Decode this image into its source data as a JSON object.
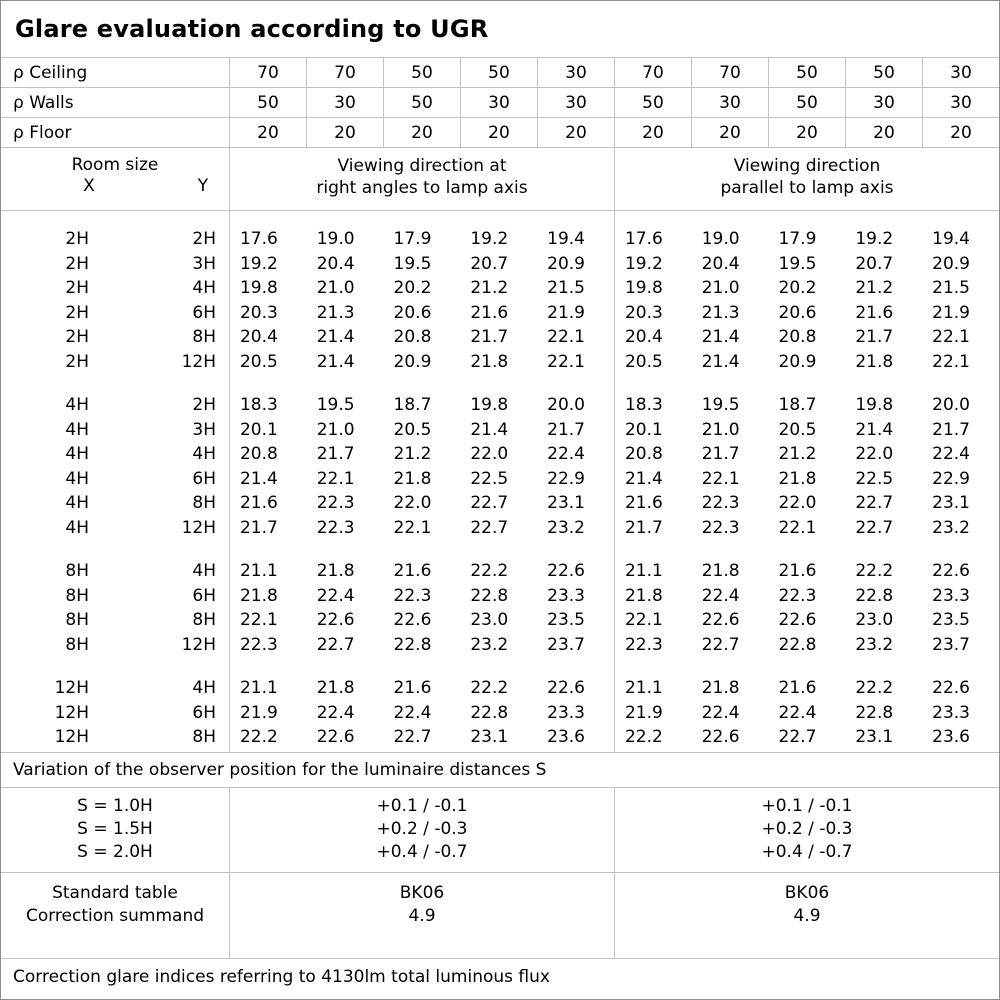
{
  "title": "Glare evaluation according to UGR",
  "colors": {
    "background": "#ffffff",
    "grid_line": "#c2c2c2",
    "outer_border": "#8f8f8f",
    "text": "#000000"
  },
  "reflectances": {
    "rows": [
      {
        "label": "ρ Ceiling",
        "values": [
          "70",
          "70",
          "50",
          "50",
          "30",
          "70",
          "70",
          "50",
          "50",
          "30"
        ]
      },
      {
        "label": "ρ Walls",
        "values": [
          "50",
          "30",
          "50",
          "30",
          "30",
          "50",
          "30",
          "50",
          "30",
          "30"
        ]
      },
      {
        "label": "ρ Floor",
        "values": [
          "20",
          "20",
          "20",
          "20",
          "20",
          "20",
          "20",
          "20",
          "20",
          "20"
        ]
      }
    ]
  },
  "columns_header": {
    "room_size_label": "Room size",
    "x_label": "X",
    "y_label": "Y",
    "left_group_line1": "Viewing direction at",
    "left_group_line2": "right angles to lamp axis",
    "right_group_line1": "Viewing direction",
    "right_group_line2": "parallel to lamp axis"
  },
  "ugr_table": {
    "groups": [
      {
        "rows": [
          {
            "x": "2H",
            "y": "2H",
            "left": [
              "17.6",
              "19.0",
              "17.9",
              "19.2",
              "19.4"
            ],
            "right": [
              "17.6",
              "19.0",
              "17.9",
              "19.2",
              "19.4"
            ]
          },
          {
            "x": "2H",
            "y": "3H",
            "left": [
              "19.2",
              "20.4",
              "19.5",
              "20.7",
              "20.9"
            ],
            "right": [
              "19.2",
              "20.4",
              "19.5",
              "20.7",
              "20.9"
            ]
          },
          {
            "x": "2H",
            "y": "4H",
            "left": [
              "19.8",
              "21.0",
              "20.2",
              "21.2",
              "21.5"
            ],
            "right": [
              "19.8",
              "21.0",
              "20.2",
              "21.2",
              "21.5"
            ]
          },
          {
            "x": "2H",
            "y": "6H",
            "left": [
              "20.3",
              "21.3",
              "20.6",
              "21.6",
              "21.9"
            ],
            "right": [
              "20.3",
              "21.3",
              "20.6",
              "21.6",
              "21.9"
            ]
          },
          {
            "x": "2H",
            "y": "8H",
            "left": [
              "20.4",
              "21.4",
              "20.8",
              "21.7",
              "22.1"
            ],
            "right": [
              "20.4",
              "21.4",
              "20.8",
              "21.7",
              "22.1"
            ]
          },
          {
            "x": "2H",
            "y": "12H",
            "left": [
              "20.5",
              "21.4",
              "20.9",
              "21.8",
              "22.1"
            ],
            "right": [
              "20.5",
              "21.4",
              "20.9",
              "21.8",
              "22.1"
            ]
          }
        ]
      },
      {
        "rows": [
          {
            "x": "4H",
            "y": "2H",
            "left": [
              "18.3",
              "19.5",
              "18.7",
              "19.8",
              "20.0"
            ],
            "right": [
              "18.3",
              "19.5",
              "18.7",
              "19.8",
              "20.0"
            ]
          },
          {
            "x": "4H",
            "y": "3H",
            "left": [
              "20.1",
              "21.0",
              "20.5",
              "21.4",
              "21.7"
            ],
            "right": [
              "20.1",
              "21.0",
              "20.5",
              "21.4",
              "21.7"
            ]
          },
          {
            "x": "4H",
            "y": "4H",
            "left": [
              "20.8",
              "21.7",
              "21.2",
              "22.0",
              "22.4"
            ],
            "right": [
              "20.8",
              "21.7",
              "21.2",
              "22.0",
              "22.4"
            ]
          },
          {
            "x": "4H",
            "y": "6H",
            "left": [
              "21.4",
              "22.1",
              "21.8",
              "22.5",
              "22.9"
            ],
            "right": [
              "21.4",
              "22.1",
              "21.8",
              "22.5",
              "22.9"
            ]
          },
          {
            "x": "4H",
            "y": "8H",
            "left": [
              "21.6",
              "22.3",
              "22.0",
              "22.7",
              "23.1"
            ],
            "right": [
              "21.6",
              "22.3",
              "22.0",
              "22.7",
              "23.1"
            ]
          },
          {
            "x": "4H",
            "y": "12H",
            "left": [
              "21.7",
              "22.3",
              "22.1",
              "22.7",
              "23.2"
            ],
            "right": [
              "21.7",
              "22.3",
              "22.1",
              "22.7",
              "23.2"
            ]
          }
        ]
      },
      {
        "rows": [
          {
            "x": "8H",
            "y": "4H",
            "left": [
              "21.1",
              "21.8",
              "21.6",
              "22.2",
              "22.6"
            ],
            "right": [
              "21.1",
              "21.8",
              "21.6",
              "22.2",
              "22.6"
            ]
          },
          {
            "x": "8H",
            "y": "6H",
            "left": [
              "21.8",
              "22.4",
              "22.3",
              "22.8",
              "23.3"
            ],
            "right": [
              "21.8",
              "22.4",
              "22.3",
              "22.8",
              "23.3"
            ]
          },
          {
            "x": "8H",
            "y": "8H",
            "left": [
              "22.1",
              "22.6",
              "22.6",
              "23.0",
              "23.5"
            ],
            "right": [
              "22.1",
              "22.6",
              "22.6",
              "23.0",
              "23.5"
            ]
          },
          {
            "x": "8H",
            "y": "12H",
            "left": [
              "22.3",
              "22.7",
              "22.8",
              "23.2",
              "23.7"
            ],
            "right": [
              "22.3",
              "22.7",
              "22.8",
              "23.2",
              "23.7"
            ]
          }
        ]
      },
      {
        "rows": [
          {
            "x": "12H",
            "y": "4H",
            "left": [
              "21.1",
              "21.8",
              "21.6",
              "22.2",
              "22.6"
            ],
            "right": [
              "21.1",
              "21.8",
              "21.6",
              "22.2",
              "22.6"
            ]
          },
          {
            "x": "12H",
            "y": "6H",
            "left": [
              "21.9",
              "22.4",
              "22.4",
              "22.8",
              "23.3"
            ],
            "right": [
              "21.9",
              "22.4",
              "22.4",
              "22.8",
              "23.3"
            ]
          },
          {
            "x": "12H",
            "y": "8H",
            "left": [
              "22.2",
              "22.6",
              "22.7",
              "23.1",
              "23.6"
            ],
            "right": [
              "22.2",
              "22.6",
              "22.7",
              "23.1",
              "23.6"
            ]
          }
        ]
      }
    ]
  },
  "variation_note": "Variation of the observer position for the luminaire distances S",
  "spacing_section": {
    "rows": [
      {
        "label": "S = 1.0H",
        "left": "+0.1 / -0.1",
        "right": "+0.1 / -0.1"
      },
      {
        "label": "S = 1.5H",
        "left": "+0.2 / -0.3",
        "right": "+0.2 / -0.3"
      },
      {
        "label": "S = 2.0H",
        "left": "+0.4 / -0.7",
        "right": "+0.4 / -0.7"
      }
    ]
  },
  "standard_section": {
    "rows": [
      {
        "label": "Standard table",
        "left": "BK06",
        "right": "BK06"
      },
      {
        "label": "Correction summand",
        "left": "4.9",
        "right": "4.9"
      }
    ]
  },
  "footer_note": "Correction glare indices referring to 4130lm total luminous flux"
}
